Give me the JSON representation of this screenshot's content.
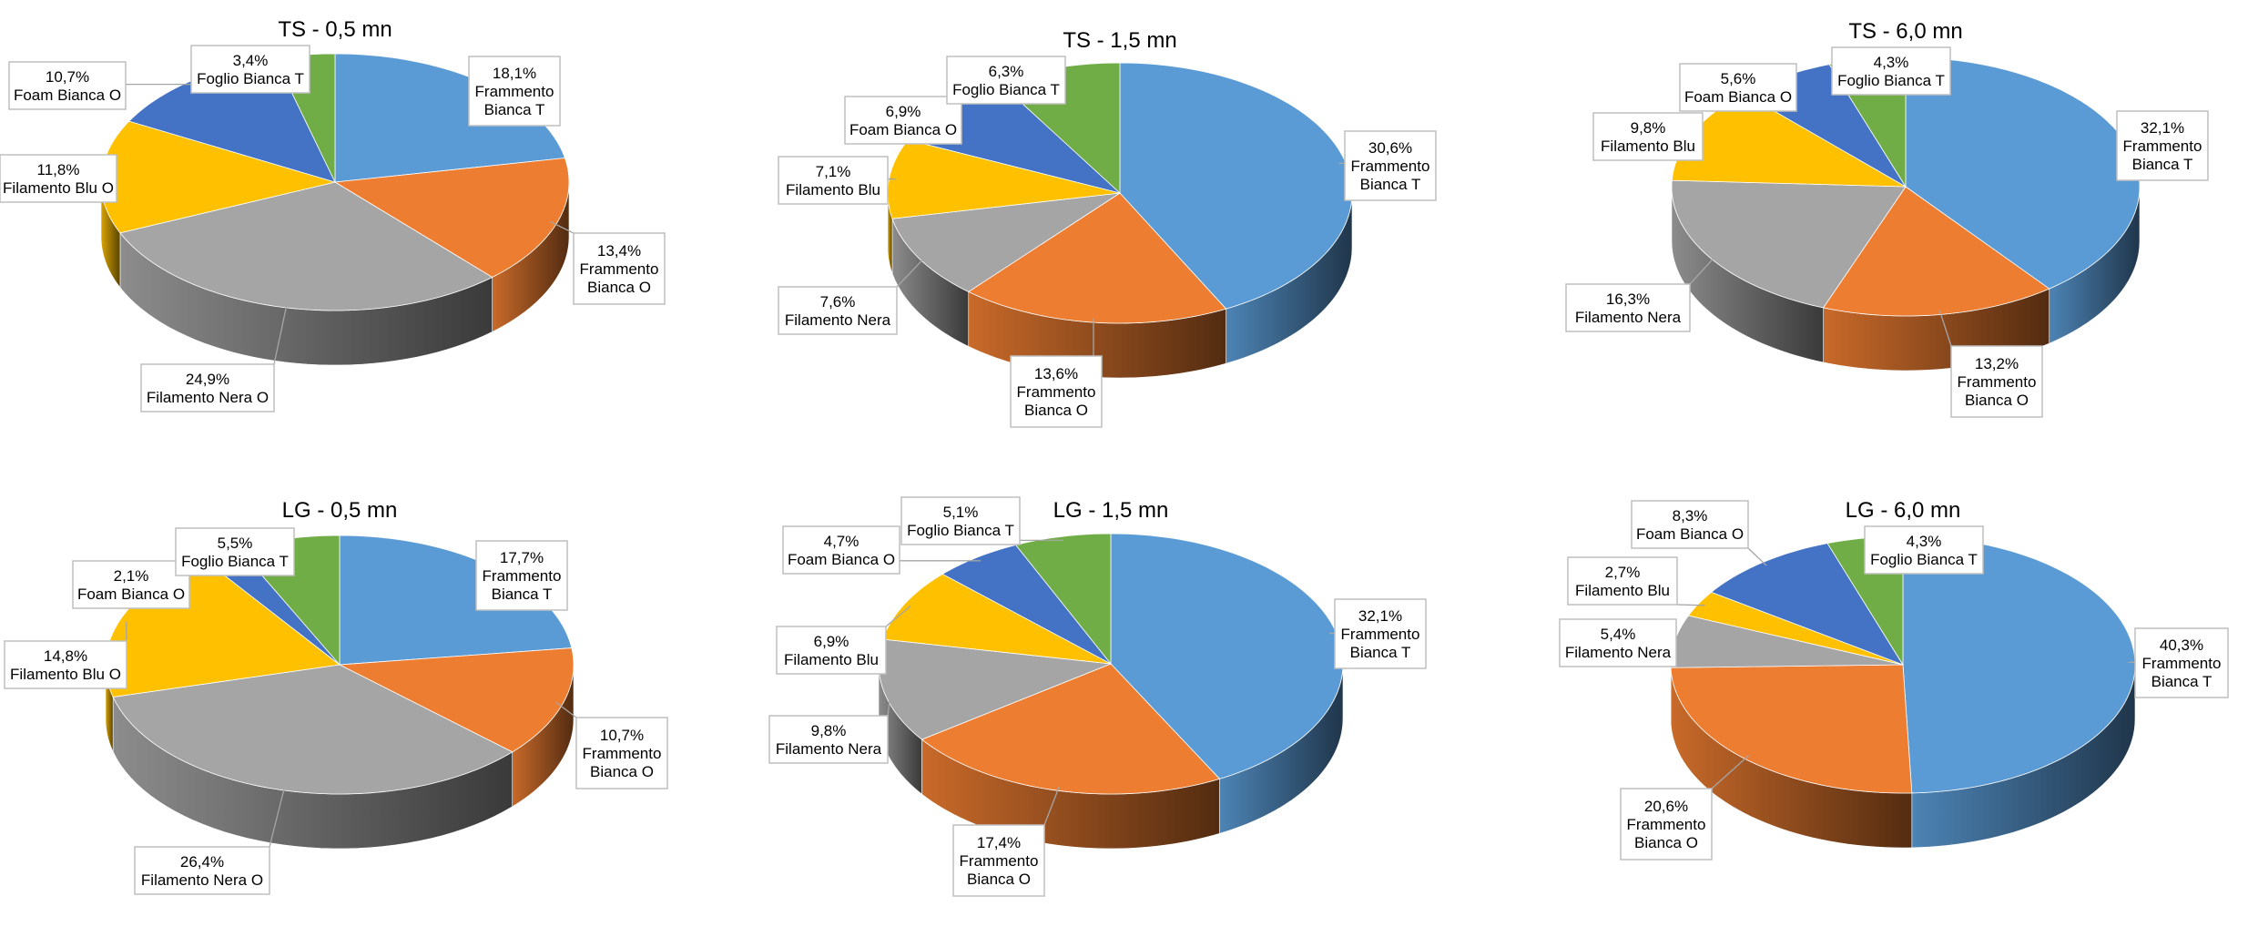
{
  "colors": {
    "Frammento Bianca T": "#5B9BD5",
    "Frammento Bianca O": "#ED7D31",
    "Filamento Nera O": "#A5A5A5",
    "Filamento Nera": "#A5A5A5",
    "Filamento Blu O": "#FFC000",
    "Filamento Blu": "#FFC000",
    "Foam Bianca O": "#4472C4",
    "Foglio Bianca T": "#70AD47"
  },
  "chart_data": [
    {
      "type": "pie",
      "title": "TS - 0,5 mn",
      "slices": [
        {
          "label": "Frammento Bianca T",
          "value": 18.1,
          "text": "18,1%"
        },
        {
          "label": "Frammento Bianca O",
          "value": 13.4,
          "text": "13,4%"
        },
        {
          "label": "Filamento Nera O",
          "value": 24.9,
          "text": "24,9%"
        },
        {
          "label": "Filamento Blu O",
          "value": 11.8,
          "text": "11,8%"
        },
        {
          "label": "Foam Bianca O",
          "value": 10.7,
          "text": "10,7%"
        },
        {
          "label": "Foglio Bianca T",
          "value": 3.4,
          "text": "3,4%"
        }
      ]
    },
    {
      "type": "pie",
      "title": "TS - 1,5 mn",
      "slices": [
        {
          "label": "Frammento Bianca T",
          "value": 30.6,
          "text": "30,6%"
        },
        {
          "label": "Frammento Bianca O",
          "value": 13.6,
          "text": "13,6%"
        },
        {
          "label": "Filamento Nera",
          "value": 7.6,
          "text": "7,6%"
        },
        {
          "label": "Filamento Blu",
          "value": 7.1,
          "text": "7,1%"
        },
        {
          "label": "Foam Bianca O",
          "value": 6.9,
          "text": "6,9%"
        },
        {
          "label": "Foglio Bianca T",
          "value": 6.3,
          "text": "6,3%"
        }
      ]
    },
    {
      "type": "pie",
      "title": "TS - 6,0 mn",
      "slices": [
        {
          "label": "Frammento Bianca T",
          "value": 32.1,
          "text": "32,1%"
        },
        {
          "label": "Frammento Bianca O",
          "value": 13.2,
          "text": "13,2%"
        },
        {
          "label": "Filamento Nera",
          "value": 16.3,
          "text": "16,3%"
        },
        {
          "label": "Filamento Blu",
          "value": 9.8,
          "text": "9,8%"
        },
        {
          "label": "Foam Bianca O",
          "value": 5.6,
          "text": "5,6%"
        },
        {
          "label": "Foglio Bianca T",
          "value": 4.3,
          "text": "4,3%"
        }
      ]
    },
    {
      "type": "pie",
      "title": "LG - 0,5 mn",
      "slices": [
        {
          "label": "Frammento Bianca T",
          "value": 17.7,
          "text": "17,7%"
        },
        {
          "label": "Frammento Bianca O",
          "value": 10.7,
          "text": "10,7%"
        },
        {
          "label": "Filamento Nera O",
          "value": 26.4,
          "text": "26,4%"
        },
        {
          "label": "Filamento Blu O",
          "value": 14.8,
          "text": "14,8%"
        },
        {
          "label": "Foam Bianca O",
          "value": 2.1,
          "text": "2,1%"
        },
        {
          "label": "Foglio Bianca T",
          "value": 5.5,
          "text": "5,5%"
        }
      ]
    },
    {
      "type": "pie",
      "title": "LG - 1,5 mn",
      "slices": [
        {
          "label": "Frammento Bianca T",
          "value": 32.1,
          "text": "32,1%"
        },
        {
          "label": "Frammento Bianca O",
          "value": 17.4,
          "text": "17,4%"
        },
        {
          "label": "Filamento Nera",
          "value": 9.8,
          "text": "9,8%"
        },
        {
          "label": "Filamento Blu",
          "value": 6.9,
          "text": "6,9%"
        },
        {
          "label": "Foam Bianca O",
          "value": 4.7,
          "text": "4,7%"
        },
        {
          "label": "Foglio Bianca T",
          "value": 5.1,
          "text": "5,1%"
        }
      ]
    },
    {
      "type": "pie",
      "title": "LG - 6,0 mn",
      "slices": [
        {
          "label": "Frammento Bianca T",
          "value": 40.3,
          "text": "40,3%"
        },
        {
          "label": "Frammento Bianca O",
          "value": 20.6,
          "text": "20,6%"
        },
        {
          "label": "Filamento Nera",
          "value": 5.4,
          "text": "5,4%"
        },
        {
          "label": "Filamento Blu",
          "value": 2.7,
          "text": "2,7%"
        },
        {
          "label": "Foam Bianca O",
          "value": 8.3,
          "text": "8,3%"
        },
        {
          "label": "Foglio Bianca T",
          "value": 4.3,
          "text": "4,3%"
        }
      ]
    }
  ]
}
